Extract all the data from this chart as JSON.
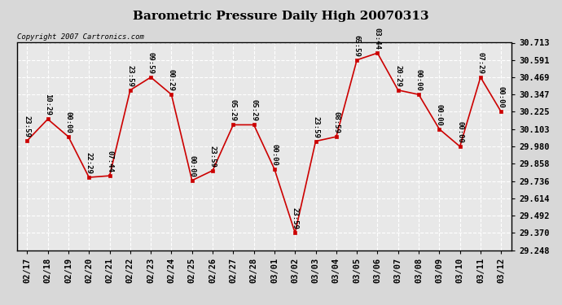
{
  "title": "Barometric Pressure Daily High 20070313",
  "copyright": "Copyright 2007 Cartronics.com",
  "x_labels": [
    "02/17",
    "02/18",
    "02/19",
    "02/20",
    "02/21",
    "02/22",
    "02/23",
    "02/24",
    "02/25",
    "02/26",
    "02/27",
    "02/28",
    "03/01",
    "03/02",
    "03/03",
    "03/04",
    "03/05",
    "03/06",
    "03/07",
    "03/08",
    "03/09",
    "03/10",
    "03/11",
    "03/12"
  ],
  "y_values": [
    30.021,
    30.173,
    30.049,
    29.762,
    29.773,
    30.378,
    30.469,
    30.347,
    29.74,
    29.81,
    30.133,
    30.133,
    29.82,
    29.37,
    30.017,
    30.049,
    30.591,
    30.64,
    30.378,
    30.347,
    30.103,
    29.98,
    30.469,
    30.225
  ],
  "point_labels": [
    "23:59",
    "10:29",
    "00:00",
    "22:29",
    "07:44",
    "23:59",
    "09:59",
    "00:29",
    "00:00",
    "23:59",
    "05:29",
    "05:29",
    "00:00",
    "23:59",
    "23:59",
    "08:59",
    "65:59",
    "03:44",
    "20:29",
    "00:00",
    "00:00",
    "00:00",
    "07:29",
    "00:00"
  ],
  "y_min": 29.248,
  "y_max": 30.713,
  "y_ticks": [
    29.248,
    29.37,
    29.492,
    29.614,
    29.736,
    29.858,
    29.98,
    30.103,
    30.225,
    30.347,
    30.469,
    30.591,
    30.713
  ],
  "line_color": "#cc0000",
  "marker_color": "#cc0000",
  "bg_color": "#d8d8d8",
  "plot_bg_color": "#e8e8e8",
  "grid_color": "#ffffff",
  "title_fontsize": 11,
  "label_fontsize": 6.5,
  "tick_fontsize": 7.5
}
